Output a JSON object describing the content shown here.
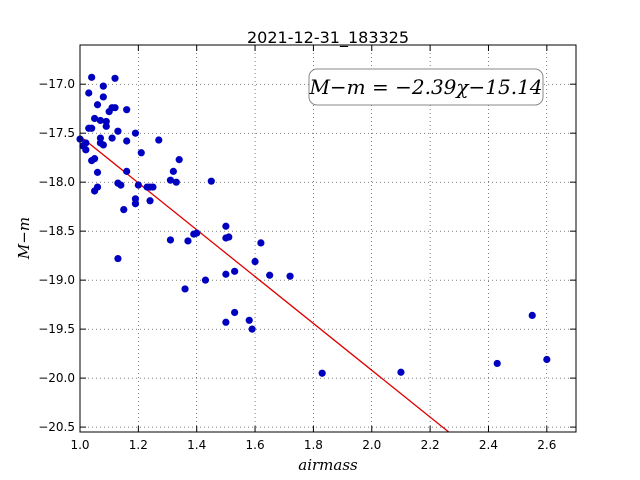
{
  "chart_data": {
    "type": "scatter",
    "title": "2021-12-31_183325",
    "xlabel": "airmass",
    "ylabel": "M−m",
    "xlim": [
      1.0,
      2.7
    ],
    "ylim": [
      -16.6,
      -20.55
    ],
    "y_inverted": true,
    "xticks": [
      "1.0",
      "1.2",
      "1.4",
      "1.6",
      "1.8",
      "2.0",
      "2.2",
      "2.4",
      "2.6"
    ],
    "yticks": [
      "−17.0",
      "−17.5",
      "−18.0",
      "−18.5",
      "−19.0",
      "−19.5",
      "−20.0",
      "−20.5"
    ],
    "grid": true,
    "annotation": "M−m = −2.39χ−15.14",
    "fit_line": {
      "slope": -2.39,
      "intercept": -15.14,
      "color": "#e00000"
    },
    "point_color": "#0000c0",
    "points": [
      [
        1.0,
        -17.56
      ],
      [
        1.01,
        -17.63
      ],
      [
        1.02,
        -17.67
      ],
      [
        1.02,
        -17.6
      ],
      [
        1.03,
        -17.45
      ],
      [
        1.03,
        -17.09
      ],
      [
        1.04,
        -16.93
      ],
      [
        1.04,
        -17.45
      ],
      [
        1.04,
        -17.78
      ],
      [
        1.05,
        -17.76
      ],
      [
        1.05,
        -17.35
      ],
      [
        1.05,
        -18.09
      ],
      [
        1.06,
        -18.05
      ],
      [
        1.06,
        -17.21
      ],
      [
        1.06,
        -17.9
      ],
      [
        1.07,
        -17.37
      ],
      [
        1.07,
        -17.55
      ],
      [
        1.07,
        -17.6
      ],
      [
        1.08,
        -17.02
      ],
      [
        1.08,
        -17.13
      ],
      [
        1.08,
        -17.62
      ],
      [
        1.09,
        -17.38
      ],
      [
        1.09,
        -17.43
      ],
      [
        1.1,
        -17.28
      ],
      [
        1.11,
        -17.24
      ],
      [
        1.11,
        -17.55
      ],
      [
        1.12,
        -17.24
      ],
      [
        1.12,
        -16.94
      ],
      [
        1.13,
        -17.48
      ],
      [
        1.13,
        -18.01
      ],
      [
        1.13,
        -18.78
      ],
      [
        1.14,
        -18.03
      ],
      [
        1.15,
        -18.28
      ],
      [
        1.16,
        -17.26
      ],
      [
        1.16,
        -17.58
      ],
      [
        1.16,
        -17.89
      ],
      [
        1.19,
        -17.5
      ],
      [
        1.19,
        -18.17
      ],
      [
        1.19,
        -18.22
      ],
      [
        1.2,
        -18.03
      ],
      [
        1.21,
        -17.7
      ],
      [
        1.23,
        -18.05
      ],
      [
        1.24,
        -18.05
      ],
      [
        1.24,
        -18.19
      ],
      [
        1.25,
        -18.05
      ],
      [
        1.27,
        -17.57
      ],
      [
        1.31,
        -17.98
      ],
      [
        1.31,
        -18.59
      ],
      [
        1.32,
        -17.89
      ],
      [
        1.33,
        -18.0
      ],
      [
        1.34,
        -17.77
      ],
      [
        1.36,
        -19.09
      ],
      [
        1.37,
        -18.6
      ],
      [
        1.39,
        -18.53
      ],
      [
        1.4,
        -18.52
      ],
      [
        1.43,
        -19.0
      ],
      [
        1.45,
        -17.99
      ],
      [
        1.5,
        -18.45
      ],
      [
        1.5,
        -18.57
      ],
      [
        1.5,
        -18.94
      ],
      [
        1.5,
        -19.43
      ],
      [
        1.51,
        -18.56
      ],
      [
        1.53,
        -18.91
      ],
      [
        1.53,
        -19.33
      ],
      [
        1.58,
        -19.41
      ],
      [
        1.59,
        -19.5
      ],
      [
        1.6,
        -18.81
      ],
      [
        1.62,
        -18.62
      ],
      [
        1.65,
        -18.95
      ],
      [
        1.72,
        -18.96
      ],
      [
        1.83,
        -19.95
      ],
      [
        2.1,
        -19.94
      ],
      [
        2.43,
        -19.85
      ],
      [
        2.55,
        -19.36
      ],
      [
        2.6,
        -19.81
      ]
    ]
  }
}
